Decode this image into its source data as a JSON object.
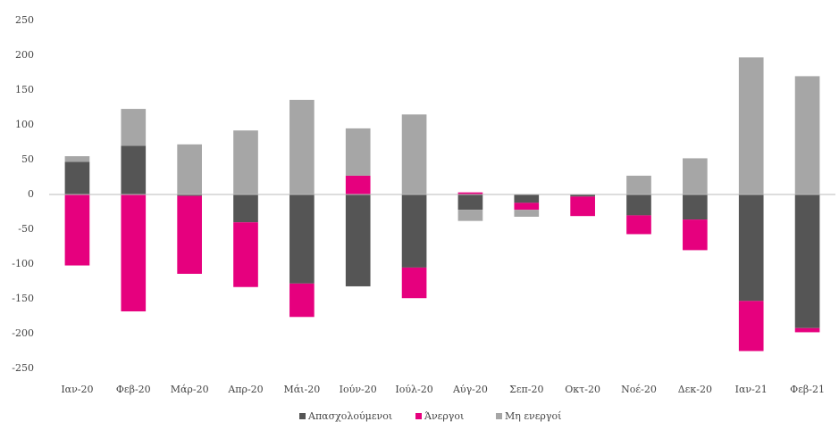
{
  "chart_data": {
    "type": "stacked_bar",
    "categories": [
      "Ιαν-20",
      "Φεβ-20",
      "Μάρ-20",
      "Απρ-20",
      "Μάι-20",
      "Ιούν-20",
      "Ιούλ-20",
      "Αύγ-20",
      "Σεπ-20",
      "Οκτ-20",
      "Νοέ-20",
      "Δεκ-20",
      "Ιαν-21",
      "Φεβ-21"
    ],
    "series": [
      {
        "name": "Απασχολούμενοι",
        "color": "#555555",
        "values": [
          47,
          70,
          -2,
          -40,
          -128,
          -132,
          -105,
          -22,
          -12,
          -3,
          -30,
          -36,
          -153,
          -192
        ]
      },
      {
        "name": "Άνεργοι",
        "color": "#e6007e",
        "values": [
          -102,
          -168,
          -112,
          -93,
          -48,
          27,
          -44,
          3,
          -10,
          -28,
          -27,
          -44,
          -72,
          -6
        ]
      },
      {
        "name": "Μη ενεργοί",
        "color": "#a6a6a6",
        "values": [
          8,
          53,
          72,
          92,
          136,
          68,
          115,
          -16,
          -10,
          0,
          27,
          52,
          197,
          170
        ]
      }
    ],
    "ylim": [
      -250,
      250
    ],
    "yticks": [
      -250,
      -200,
      -150,
      -100,
      -50,
      0,
      50,
      100,
      150,
      200,
      250
    ],
    "grid": false,
    "legend": "bottom"
  }
}
